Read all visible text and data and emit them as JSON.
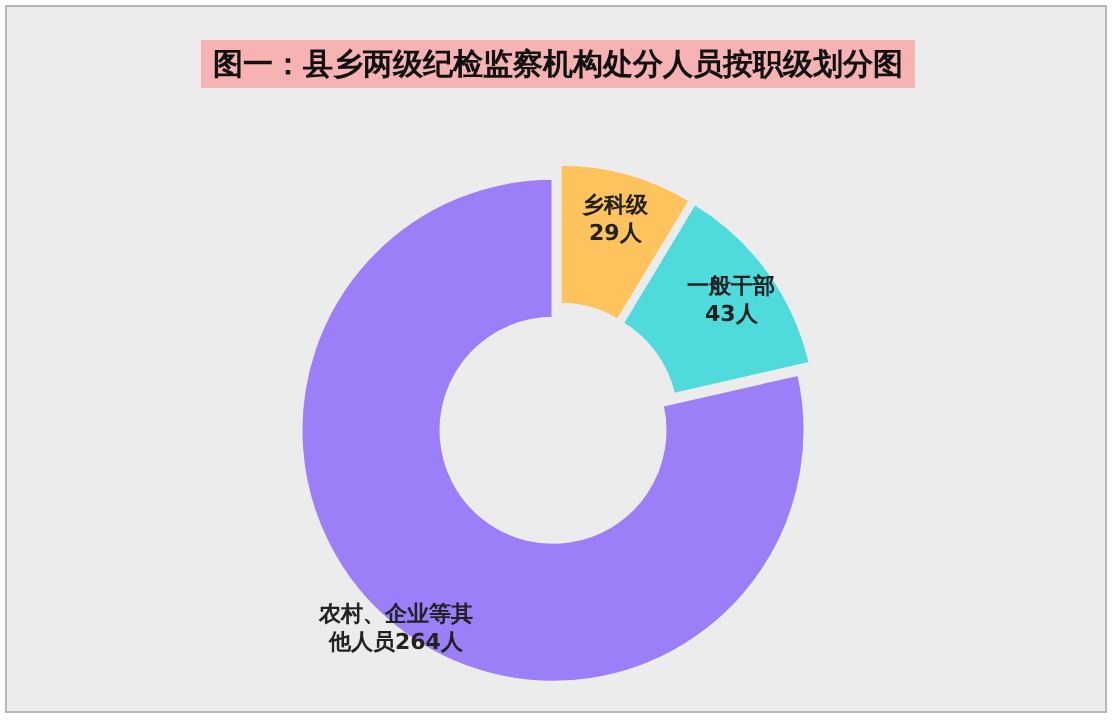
{
  "chart_data": {
    "type": "donut",
    "title": "图一：县乡两级纪检监察机构处分人员按职级划分图",
    "categories": [
      "乡科级",
      "一般干部",
      "农村、企业等其他人员"
    ],
    "values": [
      29,
      43,
      264
    ],
    "value_labels": [
      "29人",
      "43人",
      "264人"
    ],
    "colors": [
      "#ffc35e",
      "#4fdbdc",
      "#9b7ef8"
    ]
  }
}
